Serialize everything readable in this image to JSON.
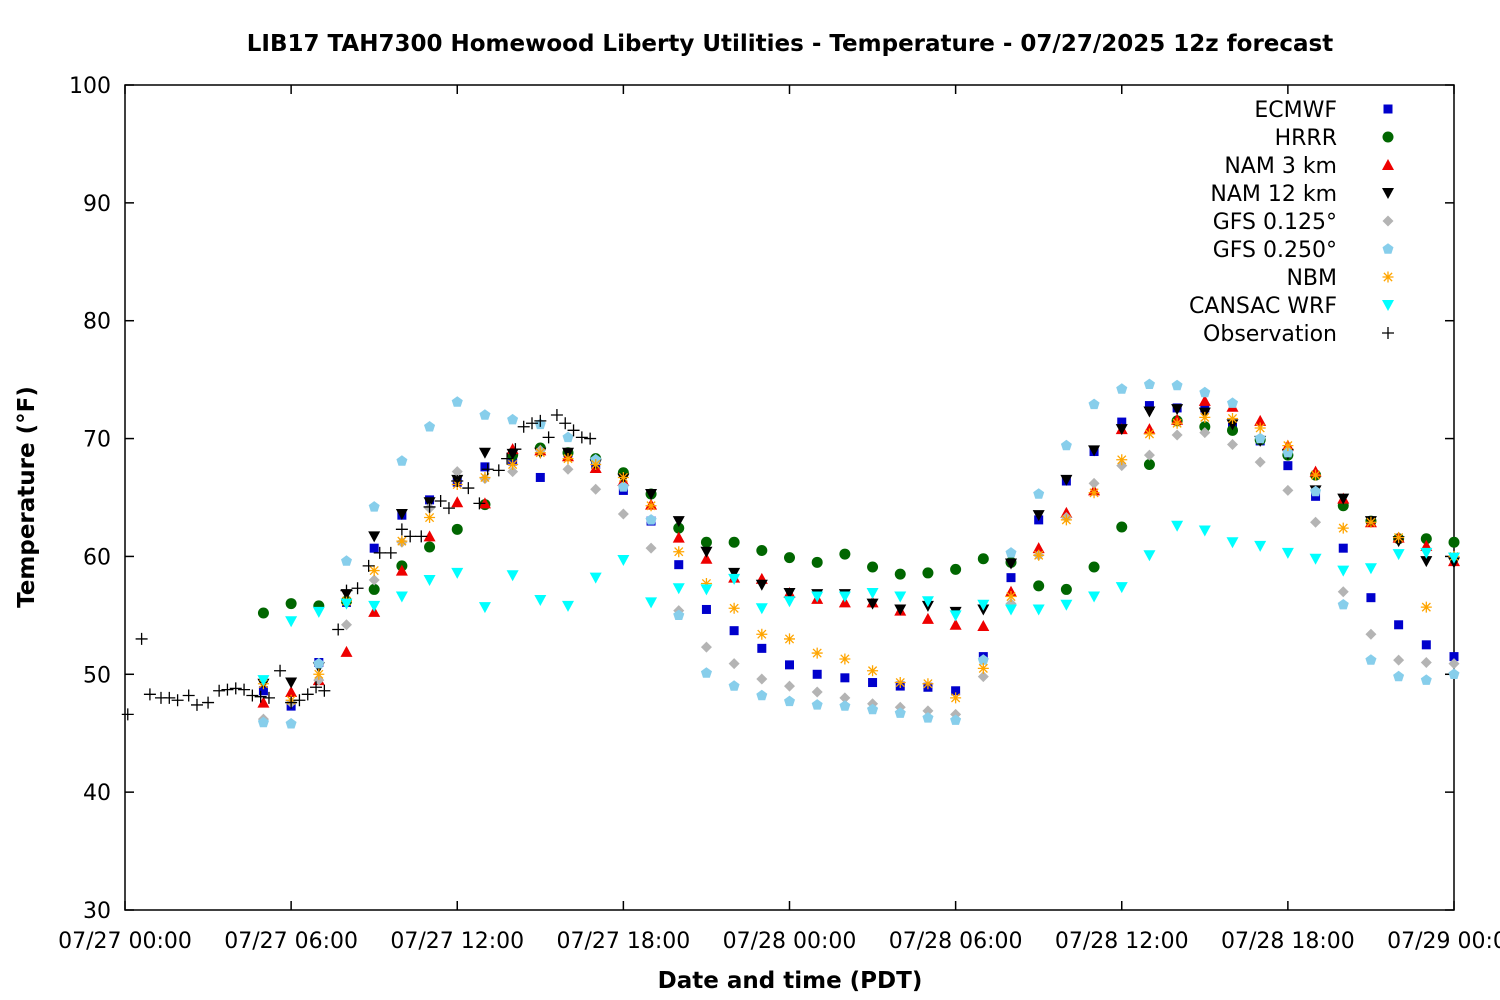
{
  "chart_data": {
    "type": "scatter",
    "title": "LIB17 TAH7300 Homewood Liberty Utilities - Temperature - 07/27/2025 12z forecast",
    "xlabel": "Date and time (PDT)",
    "ylabel": "Temperature (°F)",
    "x_unit": "hours since 07/27 00:00 PDT",
    "xlim": [
      0,
      48
    ],
    "ylim": [
      30,
      100
    ],
    "x_ticks": [
      {
        "value": 0,
        "label": "07/27 00:00"
      },
      {
        "value": 6,
        "label": "07/27 06:00"
      },
      {
        "value": 12,
        "label": "07/27 12:00"
      },
      {
        "value": 18,
        "label": "07/27 18:00"
      },
      {
        "value": 24,
        "label": "07/28 00:00"
      },
      {
        "value": 30,
        "label": "07/28 06:00"
      },
      {
        "value": 36,
        "label": "07/28 12:00"
      },
      {
        "value": 42,
        "label": "07/28 18:00"
      },
      {
        "value": 48,
        "label": "07/29 00:00"
      }
    ],
    "y_ticks": [
      30,
      40,
      50,
      60,
      70,
      80,
      90,
      100
    ],
    "grid": false,
    "legend_position": "top-right",
    "series": [
      {
        "name": "ECMWF",
        "marker": "square",
        "color": "#0000cc",
        "x": [
          5,
          6,
          7,
          8,
          9,
          10,
          11,
          12,
          13,
          14,
          15,
          16,
          17,
          18,
          19,
          20,
          21,
          22,
          23,
          24,
          25,
          26,
          27,
          28,
          29,
          30,
          31,
          32,
          33,
          34,
          35,
          36,
          37,
          38,
          39,
          40,
          41,
          42,
          43,
          44,
          45,
          46,
          47,
          48
        ],
        "y": [
          48.6,
          47.3,
          51.0,
          56.1,
          60.7,
          63.5,
          64.8,
          66.3,
          67.6,
          68.1,
          66.7,
          68.8,
          67.8,
          65.6,
          63.0,
          59.3,
          55.5,
          53.7,
          52.2,
          50.8,
          50.0,
          49.7,
          49.3,
          49.0,
          48.9,
          48.6,
          51.5,
          58.2,
          63.1,
          66.4,
          68.9,
          71.4,
          72.8,
          72.6,
          72.6,
          71.0,
          69.8,
          67.7,
          65.1,
          60.7,
          56.5,
          54.2,
          52.5,
          51.5
        ]
      },
      {
        "name": "HRRR",
        "marker": "circle",
        "color": "#006600",
        "x": [
          5,
          6,
          7,
          8,
          9,
          10,
          11,
          12,
          13,
          14,
          15,
          16,
          17,
          18,
          19,
          20,
          21,
          22,
          23,
          24,
          25,
          26,
          27,
          28,
          29,
          30,
          31,
          32,
          33,
          34,
          35,
          36,
          37,
          38,
          39,
          40,
          41,
          42,
          43,
          44,
          45,
          46,
          47,
          48
        ],
        "y": [
          55.2,
          56.0,
          55.8,
          56.2,
          57.2,
          59.2,
          60.8,
          62.3,
          64.4,
          68.6,
          69.2,
          68.8,
          68.3,
          67.1,
          65.3,
          62.4,
          61.2,
          61.2,
          60.5,
          59.9,
          59.5,
          60.2,
          59.1,
          58.5,
          58.6,
          58.9,
          59.8,
          59.5,
          57.5,
          57.2,
          59.1,
          62.5,
          67.8,
          71.5,
          71.0,
          70.7,
          69.9,
          68.6,
          66.9,
          64.3,
          63.0,
          61.5,
          61.5,
          61.2
        ]
      },
      {
        "name": "NAM 3 km",
        "marker": "triangle-up",
        "color": "#ee0000",
        "x": [
          5,
          6,
          7,
          8,
          9,
          10,
          11,
          12,
          13,
          14,
          15,
          16,
          17,
          18,
          19,
          20,
          21,
          22,
          23,
          24,
          25,
          26,
          27,
          28,
          29,
          30,
          31,
          32,
          33,
          34,
          35,
          36,
          37,
          38,
          39,
          40,
          41,
          42,
          43,
          44,
          45,
          46,
          47,
          48
        ],
        "y": [
          47.6,
          48.5,
          49.5,
          51.9,
          55.3,
          58.8,
          61.7,
          64.6,
          64.5,
          69.1,
          69.0,
          68.5,
          67.5,
          66.4,
          64.4,
          61.6,
          59.8,
          58.2,
          58.1,
          56.9,
          56.4,
          56.1,
          56.1,
          55.4,
          54.7,
          54.2,
          54.1,
          57.0,
          60.7,
          63.7,
          65.6,
          70.8,
          70.8,
          71.6,
          73.2,
          72.7,
          71.5,
          69.4,
          67.2,
          64.9,
          62.9,
          61.6,
          60.9,
          59.6
        ]
      },
      {
        "name": "NAM 12 km",
        "marker": "triangle-down",
        "color": "#000000",
        "x": [
          5,
          6,
          7,
          8,
          9,
          10,
          11,
          12,
          13,
          14,
          15,
          16,
          17,
          18,
          19,
          20,
          21,
          22,
          23,
          24,
          25,
          26,
          27,
          28,
          29,
          30,
          31,
          32,
          33,
          34,
          35,
          36,
          37,
          38,
          39,
          40,
          41,
          42,
          43,
          44,
          45,
          46,
          47,
          48
        ],
        "y": [
          49.2,
          49.3,
          50.6,
          56.8,
          61.7,
          63.6,
          64.6,
          66.5,
          68.8,
          68.7,
          68.8,
          68.8,
          67.8,
          66.6,
          65.3,
          63.0,
          60.4,
          58.6,
          57.6,
          56.9,
          56.8,
          56.8,
          56.0,
          55.5,
          55.8,
          55.3,
          55.5,
          59.4,
          63.5,
          66.5,
          69.0,
          70.8,
          72.3,
          72.5,
          72.2,
          71.2,
          69.8,
          68.7,
          65.6,
          64.9,
          63.0,
          61.3,
          59.6,
          59.5
        ]
      },
      {
        "name": "GFS 0.125°",
        "marker": "diamond",
        "color": "#b4b4b4",
        "x": [
          5,
          6,
          7,
          8,
          9,
          10,
          11,
          12,
          13,
          14,
          15,
          16,
          17,
          18,
          19,
          20,
          21,
          22,
          23,
          24,
          25,
          26,
          27,
          28,
          29,
          30,
          31,
          32,
          33,
          34,
          35,
          36,
          37,
          38,
          39,
          40,
          41,
          42,
          43,
          44,
          45,
          46,
          47,
          48
        ],
        "y": [
          46.2,
          47.6,
          49.5,
          54.2,
          58.0,
          61.2,
          64.1,
          67.2,
          66.6,
          67.2,
          69.0,
          67.4,
          65.7,
          63.6,
          60.7,
          55.4,
          52.3,
          50.9,
          49.6,
          49.0,
          48.5,
          48.0,
          47.5,
          47.2,
          46.9,
          46.6,
          49.8,
          56.0,
          60.1,
          63.3,
          66.2,
          67.7,
          68.6,
          70.3,
          70.5,
          69.5,
          68.0,
          65.6,
          62.9,
          57.0,
          53.4,
          51.2,
          51.0,
          50.9
        ]
      },
      {
        "name": "GFS 0.250°",
        "marker": "pentagon",
        "color": "#87ceeb",
        "x": [
          5,
          6,
          7,
          8,
          9,
          10,
          11,
          12,
          13,
          14,
          15,
          16,
          17,
          18,
          19,
          20,
          21,
          22,
          23,
          24,
          25,
          26,
          27,
          28,
          29,
          30,
          31,
          32,
          33,
          34,
          35,
          36,
          37,
          38,
          39,
          40,
          41,
          42,
          43,
          44,
          45,
          46,
          47,
          48
        ],
        "y": [
          45.9,
          45.8,
          50.9,
          59.6,
          64.2,
          68.1,
          71.0,
          73.1,
          72.0,
          71.6,
          71.2,
          70.1,
          68.2,
          65.9,
          63.1,
          55.0,
          50.1,
          49.0,
          48.2,
          47.7,
          47.4,
          47.3,
          47.0,
          46.7,
          46.3,
          46.1,
          51.2,
          60.3,
          65.3,
          69.4,
          72.9,
          74.2,
          74.6,
          74.5,
          73.9,
          73.0,
          70.0,
          68.8,
          65.5,
          55.9,
          51.2,
          49.8,
          49.5,
          50.0
        ]
      },
      {
        "name": "NBM",
        "marker": "asterisk",
        "color": "#ffa500",
        "x": [
          5,
          6,
          7,
          8,
          9,
          10,
          11,
          12,
          13,
          14,
          15,
          16,
          17,
          18,
          19,
          20,
          21,
          22,
          23,
          24,
          25,
          26,
          27,
          28,
          29,
          30,
          31,
          32,
          33,
          34,
          35,
          36,
          37,
          38,
          39,
          40,
          41,
          42,
          43,
          44,
          45,
          46,
          47,
          48
        ],
        "y": [
          49.2,
          47.8,
          50.0,
          56.2,
          58.8,
          61.3,
          63.3,
          66.1,
          66.7,
          67.8,
          68.8,
          68.3,
          67.8,
          66.7,
          64.3,
          60.4,
          57.7,
          55.6,
          53.4,
          53.0,
          51.8,
          51.3,
          50.3,
          49.3,
          49.2,
          48.0,
          50.5,
          56.6,
          60.1,
          63.1,
          65.4,
          68.2,
          70.4,
          71.3,
          71.8,
          71.7,
          70.9,
          69.4,
          66.9,
          62.4,
          62.9,
          61.6,
          55.7,
          60.0
        ]
      },
      {
        "name": "CANSAC WRF",
        "marker": "triangle-down",
        "color": "#00ffff",
        "x": [
          5,
          6,
          7,
          8,
          9,
          10,
          11,
          12,
          13,
          14,
          15,
          16,
          17,
          18,
          19,
          20,
          21,
          22,
          23,
          24,
          25,
          26,
          27,
          28,
          29,
          30,
          31,
          32,
          33,
          34,
          35,
          36,
          37,
          38,
          39,
          40,
          41,
          42,
          43,
          44,
          45,
          46,
          47,
          48
        ],
        "y": [
          49.5,
          54.5,
          55.3,
          56.0,
          55.8,
          56.6,
          58.0,
          58.6,
          55.7,
          58.4,
          56.3,
          55.8,
          58.2,
          59.7,
          56.1,
          57.3,
          57.2,
          58.1,
          55.6,
          56.2,
          56.6,
          56.6,
          56.9,
          56.6,
          56.2,
          55.0,
          55.9,
          55.5,
          55.5,
          55.9,
          56.6,
          57.4,
          60.1,
          62.6,
          62.2,
          61.2,
          60.9,
          60.3,
          59.8,
          58.8,
          59.0,
          60.2,
          60.3,
          59.9
        ]
      },
      {
        "name": "Observation",
        "marker": "plus",
        "color": "#000000",
        "x": [
          0.1,
          0.6,
          0.9,
          1.3,
          1.6,
          1.9,
          2.3,
          2.6,
          3.0,
          3.4,
          3.7,
          4.0,
          4.3,
          4.6,
          4.9,
          5.2,
          5.6,
          6.0,
          6.3,
          6.6,
          6.9,
          7.2,
          7.7,
          8.0,
          8.4,
          8.8,
          9.2,
          9.6,
          10.0,
          10.3,
          10.7,
          11.0,
          11.4,
          11.7,
          12.0,
          12.4,
          12.8,
          13.1,
          13.5,
          13.8,
          14.1,
          14.4,
          14.7,
          15.0,
          15.3,
          15.6,
          15.9,
          16.2,
          16.5,
          16.8
        ],
        "y": [
          46.6,
          53.0,
          48.3,
          48.0,
          48.0,
          47.8,
          48.2,
          47.4,
          47.6,
          48.6,
          48.7,
          48.8,
          48.7,
          48.2,
          48.1,
          48.0,
          50.3,
          47.6,
          47.8,
          48.3,
          48.9,
          48.6,
          53.8,
          57.1,
          57.3,
          59.2,
          60.3,
          60.3,
          62.3,
          61.7,
          61.7,
          64.2,
          64.7,
          64.1,
          66.4,
          65.8,
          64.5,
          67.4,
          67.3,
          68.3,
          69.1,
          71.0,
          71.3,
          71.5,
          70.1,
          72.0,
          71.3,
          70.7,
          70.1,
          70.0
        ]
      }
    ]
  }
}
